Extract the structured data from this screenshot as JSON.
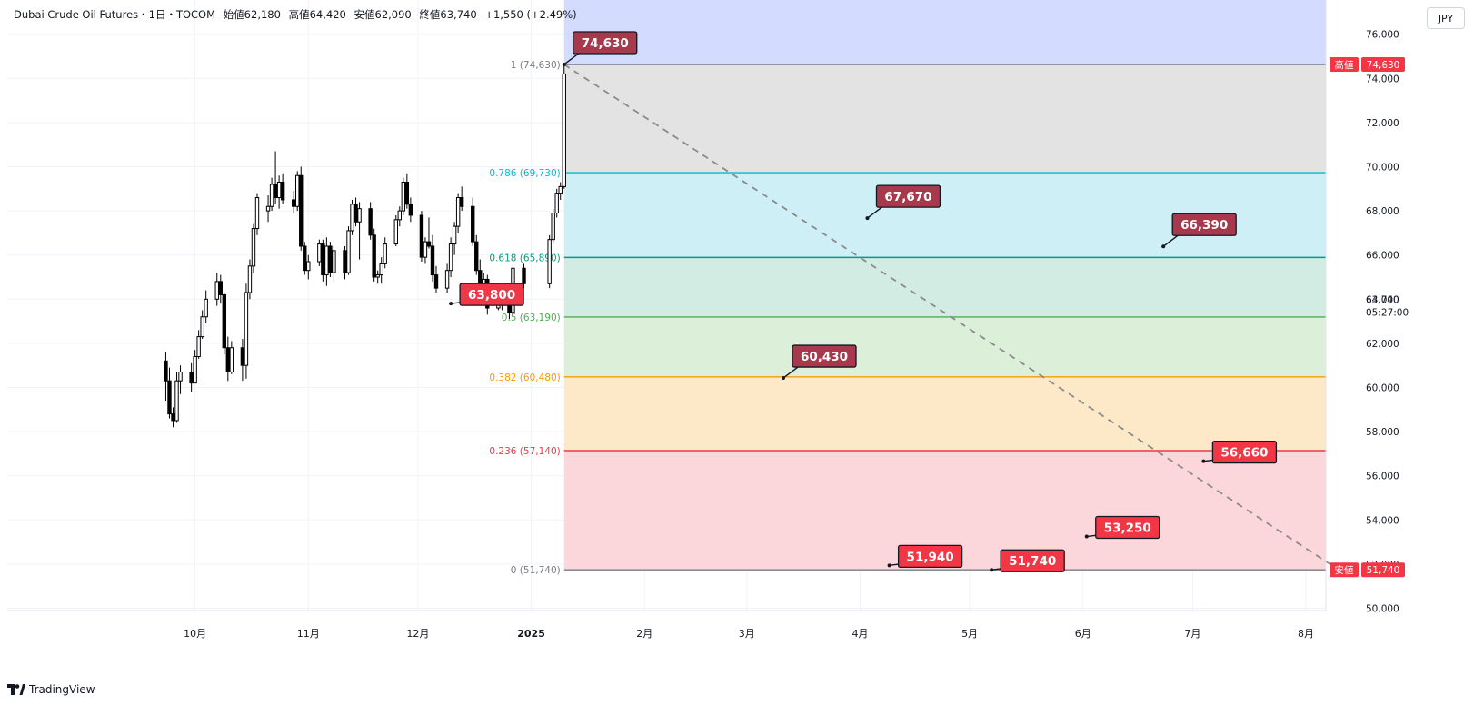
{
  "header": {
    "symbol": "Dubai Crude Oil Futures・1日・TOCOM",
    "open": "始値62,180",
    "high": "高値64,420",
    "low": "安値62,090",
    "close": "終値63,740",
    "change": "+1,550 (+2.49%)"
  },
  "currency_label": "JPY",
  "footer": {
    "brand": "TradingView"
  },
  "colors": {
    "fib_1": "#787b86",
    "fib_786": "#00bcd4",
    "fib_618": "#089981",
    "fib_5": "#4caf50",
    "fib_382": "#ff9800",
    "fib_236": "#f23645",
    "fib_0": "#787b86",
    "callout_red": "#f23645",
    "callout_dark": "#a63a4c",
    "price_badge": "#f23645"
  },
  "chart_data": {
    "type": "candlestick",
    "y_axis": {
      "ylim": [
        49000,
        77000
      ],
      "ticks": [
        50000,
        52000,
        54000,
        56000,
        58000,
        60000,
        62000,
        64000,
        66000,
        68000,
        70000,
        72000,
        74000,
        76000
      ],
      "tick_labels": [
        "50,000",
        "52,000",
        "54,000",
        "56,000",
        "58,000",
        "60,000",
        "62,000",
        "64,000",
        "66,000",
        "68,000",
        "70,000",
        "72,000",
        "74,000",
        "76,000"
      ]
    },
    "x_axis": {
      "labels": [
        "10月",
        "11月",
        "12月",
        "2025",
        "2月",
        "3月",
        "4月",
        "5月",
        "6月",
        "7月",
        "8月"
      ],
      "bold_label": "2025"
    },
    "fibonacci": [
      {
        "level": 1,
        "price": 74630,
        "label": "1 (74,630)",
        "color": "#787b86"
      },
      {
        "level": 0.786,
        "price": 69730,
        "label": "0.786 (69,730)",
        "color": "#00bcd4"
      },
      {
        "level": 0.618,
        "price": 65890,
        "label": "0.618 (65,890)",
        "color": "#089981"
      },
      {
        "level": 0.5,
        "price": 63190,
        "label": "0.5 (63,190)",
        "color": "#4caf50"
      },
      {
        "level": 0.382,
        "price": 60480,
        "label": "0.382 (60,480)",
        "color": "#ff9800"
      },
      {
        "level": 0.236,
        "price": 57140,
        "label": "0.236 (57,140)",
        "color": "#f23645"
      },
      {
        "level": 0,
        "price": 51740,
        "label": "0 (51,740)",
        "color": "#787b86"
      }
    ],
    "callouts": [
      {
        "text": "74,630",
        "date": "2025-01-10",
        "price": 74630,
        "style": "dark"
      },
      {
        "text": "63,800",
        "date": "2024-12-10",
        "price": 63800,
        "style": "red"
      },
      {
        "text": "60,430",
        "date": "2025-03-11",
        "price": 60430,
        "style": "dark"
      },
      {
        "text": "67,670",
        "date": "2025-04-03",
        "price": 67670,
        "style": "dark"
      },
      {
        "text": "51,940",
        "date": "2025-04-09",
        "price": 51940,
        "style": "red"
      },
      {
        "text": "51,740",
        "date": "2025-05-07",
        "price": 51740,
        "style": "red"
      },
      {
        "text": "53,250",
        "date": "2025-06-02",
        "price": 53250,
        "style": "red"
      },
      {
        "text": "66,390",
        "date": "2025-06-23",
        "price": 66390,
        "style": "dark"
      },
      {
        "text": "56,660",
        "date": "2025-07-04",
        "price": 56660,
        "style": "red"
      }
    ],
    "trend_line": {
      "from": [
        "2025-01-10",
        74630
      ],
      "to": [
        "2025-08-10",
        51740
      ],
      "style": "dashed"
    },
    "price_tags": [
      {
        "tag": "高値",
        "value": "74,630",
        "price": 74630
      },
      {
        "tag": "安値",
        "value": "51,740",
        "price": 51740
      }
    ],
    "last_price": {
      "value": "63,740",
      "countdown": "05:27:00",
      "price": 63740
    },
    "ohlc": [
      {
        "t": "2024-09-23",
        "o": 61200,
        "h": 61600,
        "l": 59400,
        "c": 60300
      },
      {
        "t": "2024-09-24",
        "o": 60300,
        "h": 60900,
        "l": 58600,
        "c": 58800
      },
      {
        "t": "2024-09-25",
        "o": 58800,
        "h": 59100,
        "l": 58200,
        "c": 58500
      },
      {
        "t": "2024-09-26",
        "o": 58500,
        "h": 60700,
        "l": 58400,
        "c": 60300
      },
      {
        "t": "2024-09-27",
        "o": 60300,
        "h": 61000,
        "l": 59700,
        "c": 60700
      },
      {
        "t": "2024-09-30",
        "o": 60700,
        "h": 61100,
        "l": 59800,
        "c": 60200
      },
      {
        "t": "2024-10-01",
        "o": 60200,
        "h": 61700,
        "l": 60200,
        "c": 61400
      },
      {
        "t": "2024-10-02",
        "o": 61400,
        "h": 62600,
        "l": 61300,
        "c": 62300
      },
      {
        "t": "2024-10-03",
        "o": 62300,
        "h": 63500,
        "l": 62200,
        "c": 63200
      },
      {
        "t": "2024-10-04",
        "o": 63200,
        "h": 64400,
        "l": 62900,
        "c": 64000
      },
      {
        "t": "2024-10-07",
        "o": 64000,
        "h": 65200,
        "l": 63700,
        "c": 64800
      },
      {
        "t": "2024-10-08",
        "o": 64800,
        "h": 65100,
        "l": 63800,
        "c": 64200
      },
      {
        "t": "2024-10-09",
        "o": 64200,
        "h": 64300,
        "l": 61500,
        "c": 61800
      },
      {
        "t": "2024-10-10",
        "o": 61800,
        "h": 62300,
        "l": 60300,
        "c": 60700
      },
      {
        "t": "2024-10-11",
        "o": 60700,
        "h": 62100,
        "l": 60600,
        "c": 61800
      },
      {
        "t": "2024-10-14",
        "o": 61800,
        "h": 62200,
        "l": 60300,
        "c": 61000
      },
      {
        "t": "2024-10-15",
        "o": 61000,
        "h": 64700,
        "l": 60400,
        "c": 64300
      },
      {
        "t": "2024-10-16",
        "o": 64300,
        "h": 65800,
        "l": 64000,
        "c": 65500
      },
      {
        "t": "2024-10-17",
        "o": 65500,
        "h": 67400,
        "l": 65200,
        "c": 67200
      },
      {
        "t": "2024-10-18",
        "o": 67200,
        "h": 68800,
        "l": 66900,
        "c": 68600
      },
      {
        "t": "2024-10-21",
        "o": 68000,
        "h": 68700,
        "l": 67500,
        "c": 68200
      },
      {
        "t": "2024-10-22",
        "o": 68200,
        "h": 69500,
        "l": 68000,
        "c": 69200
      },
      {
        "t": "2024-10-23",
        "o": 69200,
        "h": 70700,
        "l": 68300,
        "c": 68600
      },
      {
        "t": "2024-10-24",
        "o": 68600,
        "h": 69600,
        "l": 68100,
        "c": 69300
      },
      {
        "t": "2024-10-25",
        "o": 69300,
        "h": 69700,
        "l": 68300,
        "c": 68500
      },
      {
        "t": "2024-10-28",
        "o": 68500,
        "h": 68900,
        "l": 67900,
        "c": 68200
      },
      {
        "t": "2024-10-29",
        "o": 68200,
        "h": 69800,
        "l": 68000,
        "c": 69600
      },
      {
        "t": "2024-10-30",
        "o": 69600,
        "h": 70000,
        "l": 66200,
        "c": 66400
      },
      {
        "t": "2024-10-31",
        "o": 66400,
        "h": 66600,
        "l": 65100,
        "c": 65300
      },
      {
        "t": "2024-11-01",
        "o": 65300,
        "h": 66000,
        "l": 64900,
        "c": 65700
      },
      {
        "t": "2024-11-04",
        "o": 65700,
        "h": 66700,
        "l": 65500,
        "c": 66500
      },
      {
        "t": "2024-11-05",
        "o": 66500,
        "h": 66700,
        "l": 64800,
        "c": 65100
      },
      {
        "t": "2024-11-06",
        "o": 65100,
        "h": 66800,
        "l": 64600,
        "c": 66400
      },
      {
        "t": "2024-11-07",
        "o": 66400,
        "h": 66600,
        "l": 65000,
        "c": 65200
      },
      {
        "t": "2024-11-08",
        "o": 65200,
        "h": 66400,
        "l": 64800,
        "c": 66200
      },
      {
        "t": "2024-11-11",
        "o": 66200,
        "h": 66400,
        "l": 64900,
        "c": 65200
      },
      {
        "t": "2024-11-12",
        "o": 65200,
        "h": 67300,
        "l": 65100,
        "c": 67100
      },
      {
        "t": "2024-11-13",
        "o": 67100,
        "h": 68500,
        "l": 66900,
        "c": 68300
      },
      {
        "t": "2024-11-14",
        "o": 68300,
        "h": 68600,
        "l": 67300,
        "c": 67500
      },
      {
        "t": "2024-11-15",
        "o": 67500,
        "h": 68400,
        "l": 65800,
        "c": 68100
      },
      {
        "t": "2024-11-18",
        "o": 68100,
        "h": 68400,
        "l": 66700,
        "c": 66900
      },
      {
        "t": "2024-11-19",
        "o": 66900,
        "h": 67200,
        "l": 64800,
        "c": 65000
      },
      {
        "t": "2024-11-20",
        "o": 65000,
        "h": 65300,
        "l": 64700,
        "c": 65100
      },
      {
        "t": "2024-11-21",
        "o": 65100,
        "h": 65900,
        "l": 64700,
        "c": 65600
      },
      {
        "t": "2024-11-22",
        "o": 65600,
        "h": 66800,
        "l": 65400,
        "c": 66500
      },
      {
        "t": "2024-11-25",
        "o": 66500,
        "h": 67800,
        "l": 66400,
        "c": 67600
      },
      {
        "t": "2024-11-26",
        "o": 67600,
        "h": 68200,
        "l": 67300,
        "c": 68000
      },
      {
        "t": "2024-11-27",
        "o": 68000,
        "h": 69500,
        "l": 67800,
        "c": 69300
      },
      {
        "t": "2024-11-28",
        "o": 69300,
        "h": 69700,
        "l": 68100,
        "c": 68300
      },
      {
        "t": "2024-11-29",
        "o": 68300,
        "h": 68600,
        "l": 67500,
        "c": 67800
      },
      {
        "t": "2024-12-02",
        "o": 67800,
        "h": 68000,
        "l": 65700,
        "c": 65900
      },
      {
        "t": "2024-12-03",
        "o": 65900,
        "h": 66800,
        "l": 65600,
        "c": 66600
      },
      {
        "t": "2024-12-04",
        "o": 66600,
        "h": 67700,
        "l": 66300,
        "c": 66400
      },
      {
        "t": "2024-12-05",
        "o": 66400,
        "h": 66900,
        "l": 64800,
        "c": 65100
      },
      {
        "t": "2024-12-06",
        "o": 65100,
        "h": 65500,
        "l": 64300,
        "c": 64500
      },
      {
        "t": "2024-12-09",
        "o": 64500,
        "h": 65600,
        "l": 64300,
        "c": 65300
      },
      {
        "t": "2024-12-10",
        "o": 65300,
        "h": 66800,
        "l": 65000,
        "c": 66500
      },
      {
        "t": "2024-12-11",
        "o": 66500,
        "h": 67500,
        "l": 66000,
        "c": 67300
      },
      {
        "t": "2024-12-12",
        "o": 67300,
        "h": 68800,
        "l": 67000,
        "c": 68600
      },
      {
        "t": "2024-12-13",
        "o": 68600,
        "h": 69100,
        "l": 68000,
        "c": 68200
      },
      {
        "t": "2024-12-16",
        "o": 68200,
        "h": 68600,
        "l": 66400,
        "c": 66600
      },
      {
        "t": "2024-12-17",
        "o": 66600,
        "h": 66900,
        "l": 65100,
        "c": 65300
      },
      {
        "t": "2024-12-18",
        "o": 65300,
        "h": 65800,
        "l": 64100,
        "c": 64400
      },
      {
        "t": "2024-12-19",
        "o": 64400,
        "h": 65200,
        "l": 64100,
        "c": 64900
      },
      {
        "t": "2024-12-20",
        "o": 64900,
        "h": 65100,
        "l": 63300,
        "c": 63600
      },
      {
        "t": "2024-12-23",
        "o": 63600,
        "h": 64100,
        "l": 63500,
        "c": 63800
      },
      {
        "t": "2024-12-24",
        "o": 63800,
        "h": 64600,
        "l": 63500,
        "c": 64300
      },
      {
        "t": "2024-12-25",
        "o": 64300,
        "h": 64600,
        "l": 63700,
        "c": 64000
      },
      {
        "t": "2024-12-26",
        "o": 64000,
        "h": 64300,
        "l": 63100,
        "c": 63400
      },
      {
        "t": "2024-12-27",
        "o": 63400,
        "h": 65600,
        "l": 63200,
        "c": 65400
      },
      {
        "t": "2024-12-30",
        "o": 65400,
        "h": 65600,
        "l": 64500,
        "c": 64700
      },
      {
        "t": "2025-01-06",
        "o": 64700,
        "h": 66900,
        "l": 64500,
        "c": 66700
      },
      {
        "t": "2025-01-07",
        "o": 66700,
        "h": 68100,
        "l": 66500,
        "c": 67900
      },
      {
        "t": "2025-01-08",
        "o": 67900,
        "h": 69000,
        "l": 67700,
        "c": 68800
      },
      {
        "t": "2025-01-09",
        "o": 68800,
        "h": 69300,
        "l": 68500,
        "c": 69100
      },
      {
        "t": "2025-01-10",
        "o": 69100,
        "h": 74630,
        "l": 69000,
        "c": 74200
      }
    ]
  }
}
